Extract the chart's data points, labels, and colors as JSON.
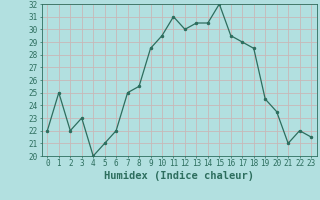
{
  "x": [
    0,
    1,
    2,
    3,
    4,
    5,
    6,
    7,
    8,
    9,
    10,
    11,
    12,
    13,
    14,
    15,
    16,
    17,
    18,
    19,
    20,
    21,
    22,
    23
  ],
  "y": [
    22,
    25,
    22,
    23,
    20,
    21,
    22,
    25,
    25.5,
    28.5,
    29.5,
    31,
    30,
    30.5,
    30.5,
    32,
    29.5,
    29,
    28.5,
    24.5,
    23.5,
    21,
    22,
    21.5
  ],
  "xlabel": "Humidex (Indice chaleur)",
  "xlim": [
    -0.5,
    23.5
  ],
  "ylim": [
    20,
    32
  ],
  "yticks": [
    20,
    21,
    22,
    23,
    24,
    25,
    26,
    27,
    28,
    29,
    30,
    31,
    32
  ],
  "xticks": [
    0,
    1,
    2,
    3,
    4,
    5,
    6,
    7,
    8,
    9,
    10,
    11,
    12,
    13,
    14,
    15,
    16,
    17,
    18,
    19,
    20,
    21,
    22,
    23
  ],
  "line_color": "#2d6e5e",
  "marker_color": "#2d6e5e",
  "bg_color": "#b2e0e0",
  "grid_color": "#c8b8b8",
  "tick_label_color": "#2d6e5e",
  "xlabel_color": "#2d6e5e",
  "tick_fontsize": 5.5,
  "xlabel_fontsize": 7.5
}
